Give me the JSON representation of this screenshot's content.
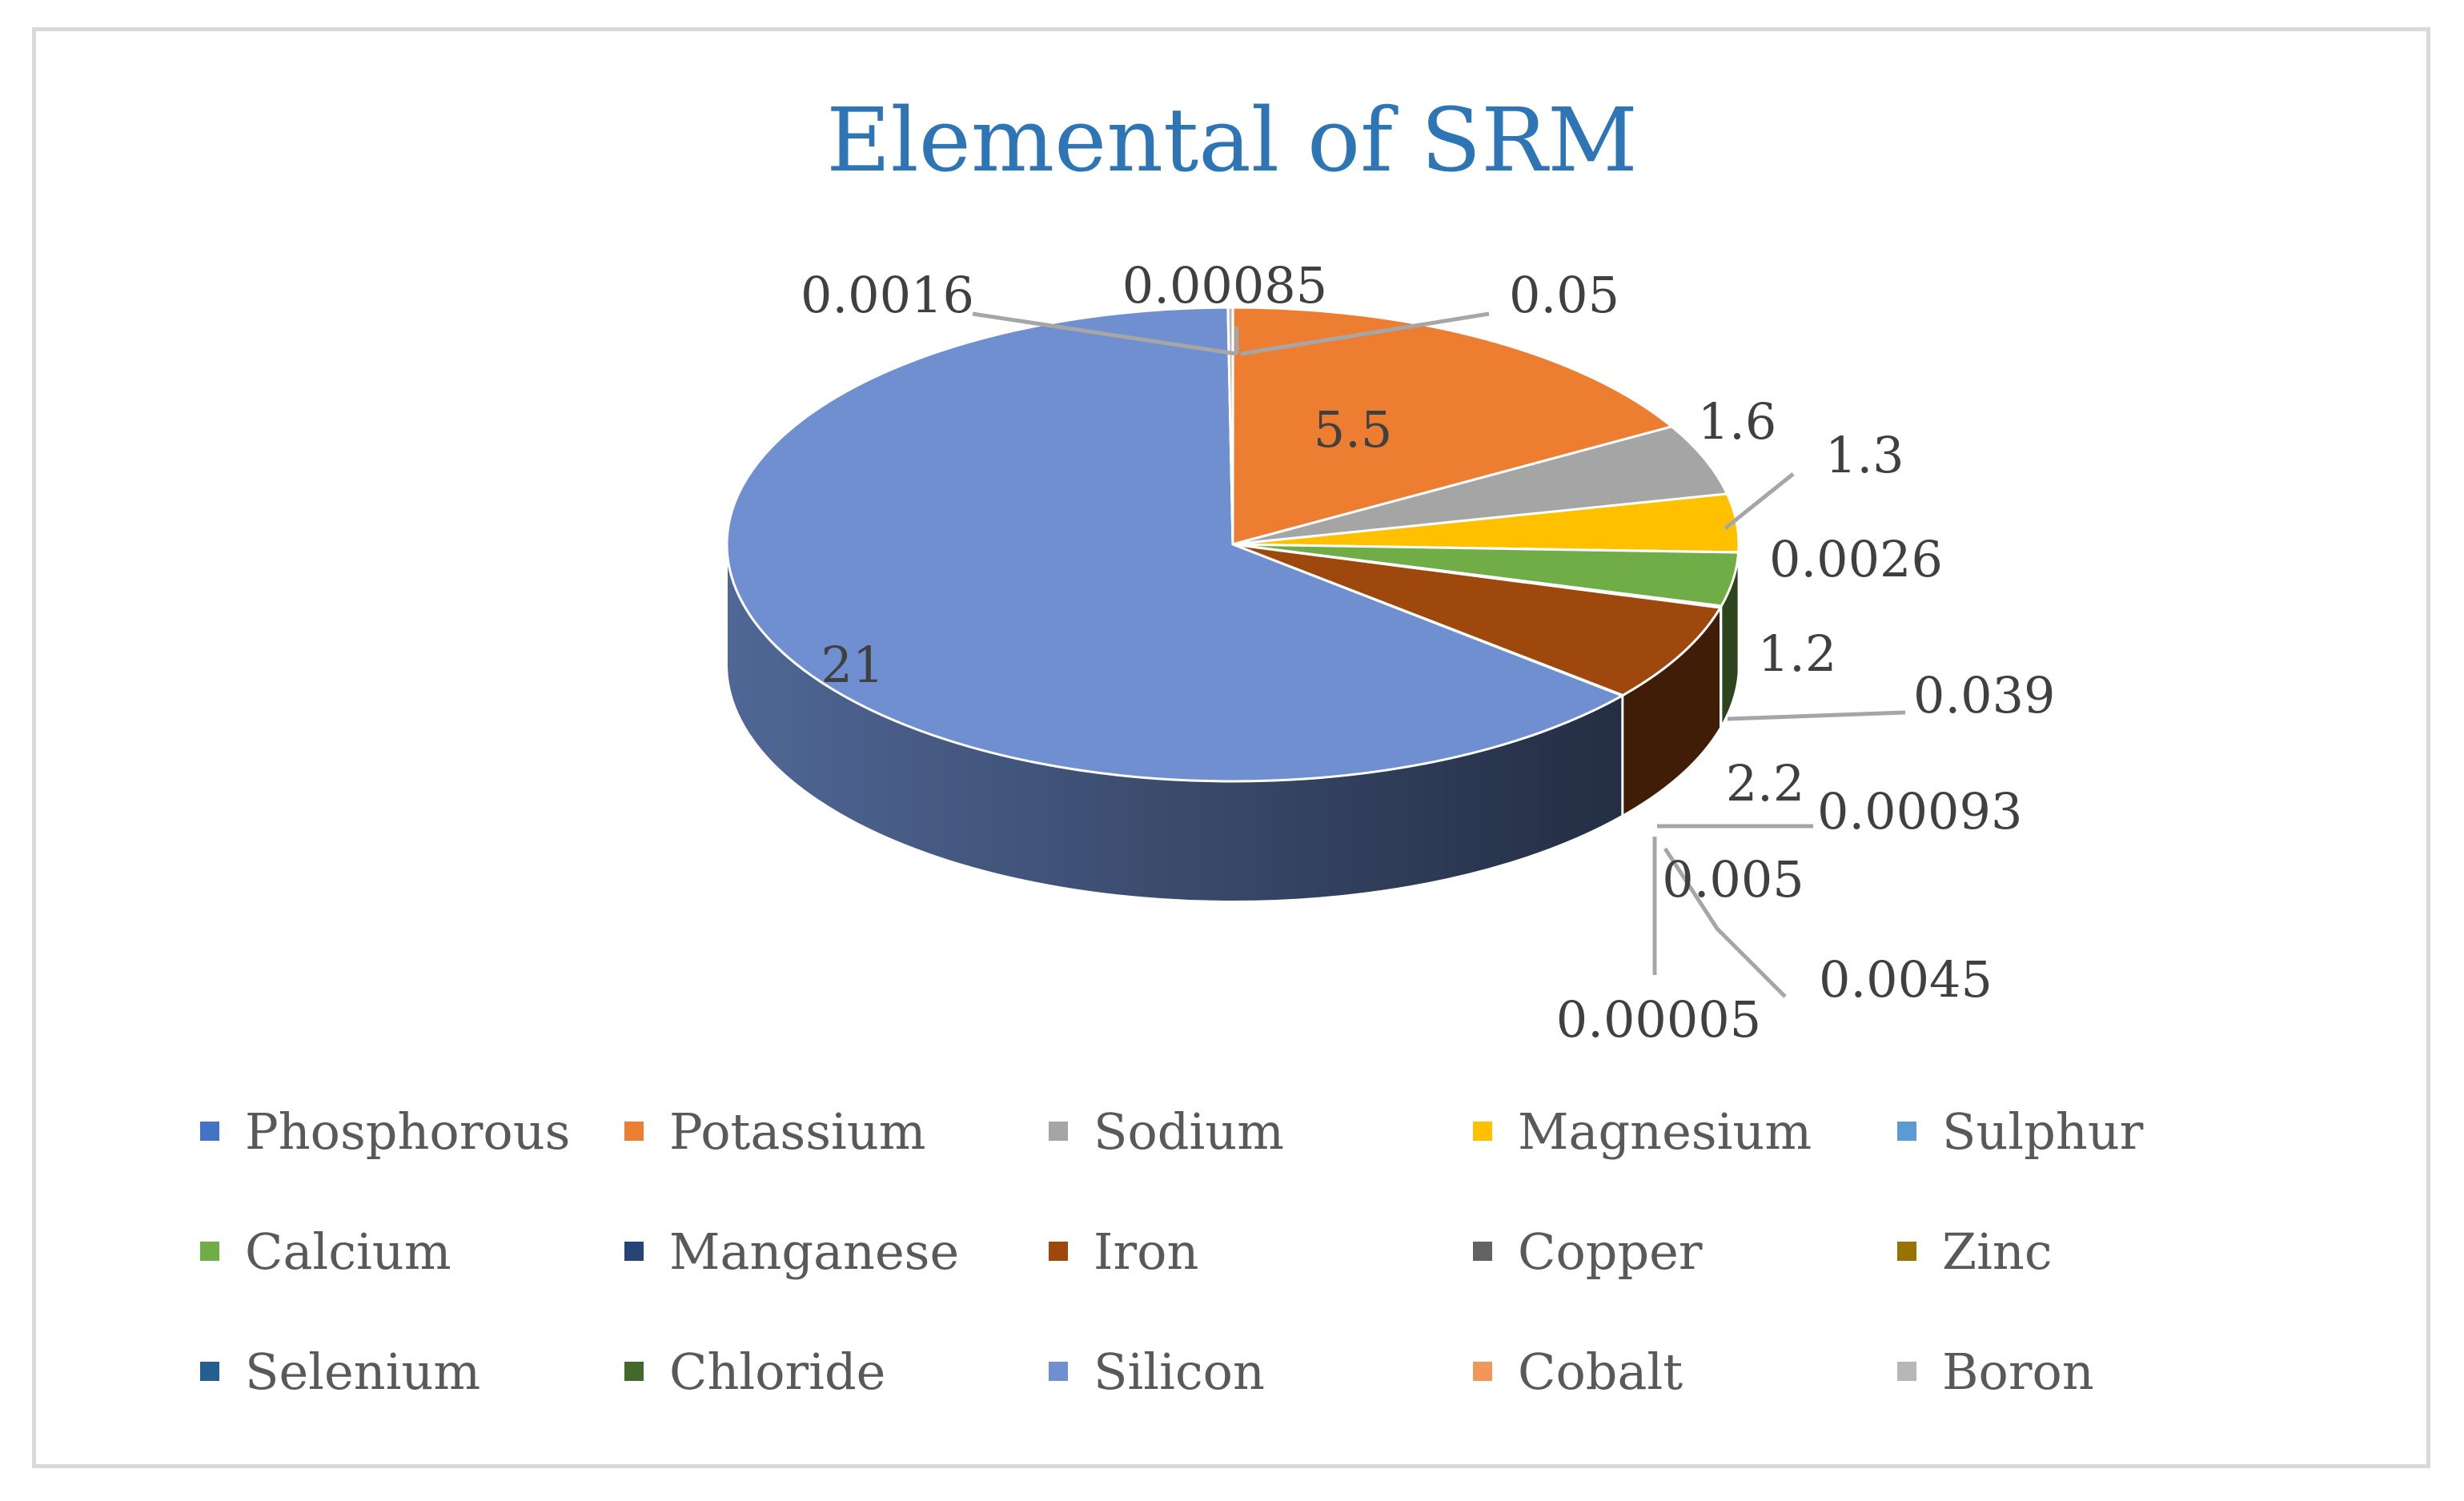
{
  "chart_data": {
    "type": "pie",
    "title": "Elemental of SRM",
    "legend_position": "bottom",
    "slices": [
      {
        "name": "Phosphorous",
        "value": 0.0016,
        "color": "#4472c4"
      },
      {
        "name": "Potassium",
        "value": 5.5,
        "color": "#ed7d31"
      },
      {
        "name": "Sodium",
        "value": 1.6,
        "color": "#a5a5a5"
      },
      {
        "name": "Magnesium",
        "value": 1.3,
        "color": "#ffc000"
      },
      {
        "name": "Sulphur",
        "value": 0.0026,
        "color": "#5b9bd5"
      },
      {
        "name": "Calcium",
        "value": 1.2,
        "color": "#70ad47"
      },
      {
        "name": "Manganese",
        "value": 0.039,
        "color": "#264478"
      },
      {
        "name": "Iron",
        "value": 2.2,
        "color": "#9e480e"
      },
      {
        "name": "Copper",
        "value": 0.00093,
        "color": "#636363"
      },
      {
        "name": "Zinc",
        "value": 0.0045,
        "color": "#997300"
      },
      {
        "name": "Selenium",
        "value": 5e-05,
        "color": "#255e91"
      },
      {
        "name": "Chloride",
        "value": 0.005,
        "color": "#43682b"
      },
      {
        "name": "Silicon",
        "value": 21,
        "color": "#6f8fd0"
      },
      {
        "name": "Cobalt",
        "value": 0.00085,
        "color": "#f1975a"
      },
      {
        "name": "Boron",
        "value": 0.05,
        "color": "#b7b7b7"
      }
    ],
    "data_labels": [
      "0.0016",
      "5.5",
      "1.6",
      "1.3",
      "0.0026",
      "1.2",
      "0.039",
      "2.2",
      "0.00093",
      "0.0045",
      "0.00005",
      "0.005",
      "21",
      "0.00085",
      "0.05"
    ]
  }
}
